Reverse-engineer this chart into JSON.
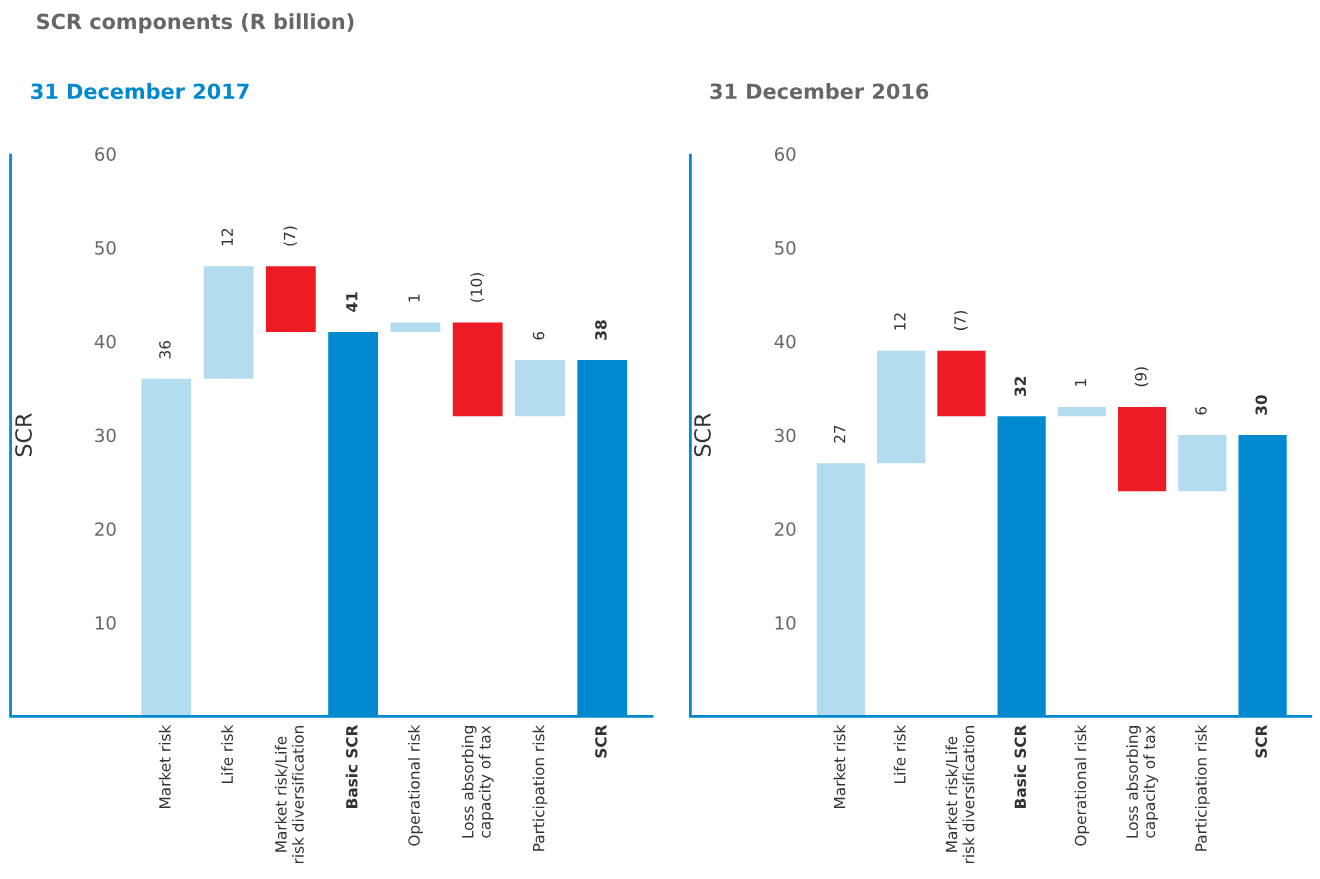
{
  "chart_data": [
    {
      "type": "bar",
      "title": "SCR components (R billion)",
      "subtitle": "31 December 2017",
      "ylabel": "SCR",
      "categories": [
        "Market risk",
        "Life risk",
        "Market risk/Life\nrisk diversification",
        "Basic SCR",
        "Operational risk",
        "Loss absorbing\ncapacity of tax",
        "Participation risk",
        "SCR"
      ],
      "values": [
        36,
        12,
        -7,
        41,
        1,
        -10,
        6,
        38
      ],
      "base": [
        0,
        36,
        48,
        0,
        41,
        42,
        32,
        0
      ],
      "colors": [
        "#b3dcef",
        "#b3dcef",
        "#ed1c24",
        "#0089cf",
        "#b3dcef",
        "#ed1c24",
        "#b3dcef",
        "#0089cf"
      ],
      "value_labels": [
        "36",
        "12",
        "(7)",
        "41",
        "1",
        "(10)",
        "6",
        "38"
      ],
      "ylim": [
        0,
        60
      ],
      "yticks": [
        10,
        20,
        30,
        40,
        50,
        60
      ],
      "grid": false
    },
    {
      "type": "bar",
      "subtitle": "31 December 2016",
      "ylabel": "SCR",
      "categories": [
        "Market risk",
        "Life risk",
        "Market risk/Life\nrisk diversification",
        "Basic SCR",
        "Operational risk",
        "Loss absorbing\ncapacity of tax",
        "Participation risk",
        "SCR"
      ],
      "values": [
        27,
        12,
        -7,
        32,
        1,
        -9,
        6,
        30
      ],
      "base": [
        0,
        27,
        39,
        0,
        32,
        33,
        24,
        0
      ],
      "colors": [
        "#b3dcef",
        "#b3dcef",
        "#ed1c24",
        "#0089cf",
        "#b3dcef",
        "#ed1c24",
        "#b3dcef",
        "#0089cf"
      ],
      "value_labels": [
        "27",
        "12",
        "(7)",
        "32",
        "1",
        "(9)",
        "6",
        "30"
      ],
      "ylim": [
        0,
        60
      ],
      "yticks": [
        10,
        20,
        30,
        40,
        50,
        60
      ],
      "grid": false
    }
  ]
}
